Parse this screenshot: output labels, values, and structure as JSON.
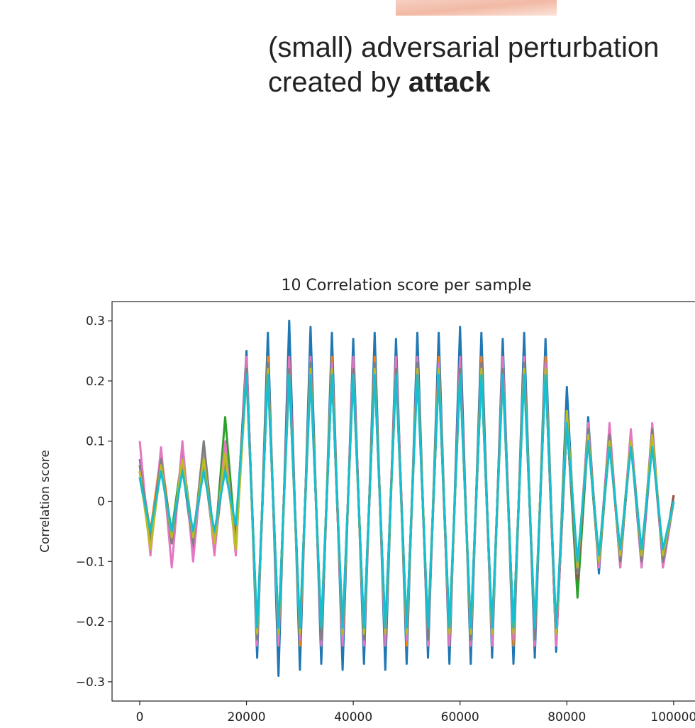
{
  "caption": {
    "line1": "(small) adversarial perturbation",
    "line2_prefix": "created by",
    "line2_bold": "attack"
  },
  "chart_data": {
    "type": "line",
    "title": "10 Correlation score per sample",
    "y_label": "Correlation score",
    "x": [
      0,
      2000,
      4000,
      6000,
      8000,
      10000,
      12000,
      14000,
      16000,
      18000,
      20000,
      22000,
      24000,
      26000,
      28000,
      30000,
      32000,
      34000,
      36000,
      38000,
      40000,
      42000,
      44000,
      46000,
      48000,
      50000,
      52000,
      54000,
      56000,
      58000,
      60000,
      62000,
      64000,
      66000,
      68000,
      70000,
      72000,
      74000,
      76000,
      78000,
      80000,
      82000,
      84000,
      86000,
      88000,
      90000,
      92000,
      94000,
      96000,
      98000,
      100000
    ],
    "xlim": [
      -5180,
      104800
    ],
    "xticks": [
      0,
      20000,
      40000,
      60000,
      80000,
      100000
    ],
    "ylim": [
      -0.332,
      0.332
    ],
    "yticks": [
      {
        "value": -0.3,
        "label": "−0.3"
      },
      {
        "value": -0.2,
        "label": "−0.2"
      },
      {
        "value": -0.1,
        "label": "−0.1"
      },
      0.0,
      0.1,
      0.2,
      0.3
    ],
    "series": [
      {
        "color": "#1f77b4",
        "values": [
          0.05,
          -0.06,
          0.07,
          -0.07,
          0.06,
          -0.08,
          0.07,
          -0.06,
          0.08,
          -0.07,
          0.25,
          -0.26,
          0.28,
          -0.29,
          0.3,
          -0.28,
          0.29,
          -0.27,
          0.28,
          -0.28,
          0.27,
          -0.27,
          0.28,
          -0.28,
          0.27,
          -0.27,
          0.28,
          -0.26,
          0.28,
          -0.27,
          0.29,
          -0.27,
          0.28,
          -0.26,
          0.27,
          -0.27,
          0.28,
          -0.26,
          0.27,
          -0.25,
          0.19,
          -0.15,
          0.14,
          -0.12,
          0.12,
          -0.11,
          0.11,
          -0.1,
          0.12,
          -0.11,
          0.0
        ]
      },
      {
        "color": "#ff7f0e",
        "values": [
          0.06,
          -0.05,
          0.08,
          -0.06,
          0.07,
          -0.07,
          0.06,
          -0.07,
          0.09,
          -0.06,
          0.22,
          -0.23,
          0.24,
          -0.23,
          0.24,
          -0.24,
          0.23,
          -0.23,
          0.24,
          -0.23,
          0.22,
          -0.23,
          0.24,
          -0.23,
          0.24,
          -0.24,
          0.23,
          -0.23,
          0.24,
          -0.23,
          0.22,
          -0.23,
          0.24,
          -0.23,
          0.24,
          -0.24,
          0.23,
          -0.23,
          0.24,
          -0.23,
          0.15,
          -0.12,
          0.12,
          -0.1,
          0.11,
          -0.1,
          0.1,
          -0.09,
          0.11,
          -0.1,
          0.01
        ]
      },
      {
        "color": "#2ca02c",
        "values": [
          0.04,
          -0.06,
          0.06,
          -0.05,
          0.08,
          -0.06,
          0.07,
          -0.08,
          0.14,
          -0.07,
          0.23,
          -0.22,
          0.23,
          -0.24,
          0.23,
          -0.23,
          0.24,
          -0.22,
          0.23,
          -0.24,
          0.23,
          -0.22,
          0.23,
          -0.24,
          0.23,
          -0.23,
          0.24,
          -0.22,
          0.23,
          -0.24,
          0.23,
          -0.22,
          0.23,
          -0.24,
          0.23,
          -0.23,
          0.24,
          -0.22,
          0.23,
          -0.24,
          0.14,
          -0.16,
          0.11,
          -0.11,
          0.1,
          -0.09,
          0.11,
          -0.1,
          0.1,
          -0.09,
          0.0
        ]
      },
      {
        "color": "#d62728",
        "values": [
          0.05,
          -0.07,
          0.07,
          -0.06,
          0.07,
          -0.06,
          0.08,
          -0.07,
          0.07,
          -0.06,
          0.24,
          -0.23,
          0.22,
          -0.23,
          0.24,
          -0.22,
          0.23,
          -0.23,
          0.22,
          -0.24,
          0.24,
          -0.23,
          0.22,
          -0.23,
          0.24,
          -0.22,
          0.23,
          -0.23,
          0.22,
          -0.24,
          0.24,
          -0.23,
          0.22,
          -0.23,
          0.24,
          -0.22,
          0.23,
          -0.23,
          0.22,
          -0.24,
          0.13,
          -0.12,
          0.12,
          -0.1,
          0.1,
          -0.1,
          0.11,
          -0.09,
          0.1,
          -0.1,
          0.01
        ]
      },
      {
        "color": "#9467bd",
        "values": [
          0.07,
          -0.06,
          0.06,
          -0.07,
          0.08,
          -0.07,
          0.06,
          -0.06,
          0.08,
          -0.08,
          0.22,
          -0.22,
          0.23,
          -0.22,
          0.22,
          -0.23,
          0.22,
          -0.22,
          0.23,
          -0.22,
          0.22,
          -0.22,
          0.23,
          -0.22,
          0.22,
          -0.23,
          0.22,
          -0.22,
          0.23,
          -0.22,
          0.22,
          -0.22,
          0.23,
          -0.22,
          0.22,
          -0.23,
          0.22,
          -0.22,
          0.23,
          -0.22,
          0.14,
          -0.11,
          0.11,
          -0.1,
          0.12,
          -0.1,
          0.1,
          -0.11,
          0.1,
          -0.09,
          0.0
        ]
      },
      {
        "color": "#8c564b",
        "values": [
          0.06,
          -0.07,
          0.07,
          -0.07,
          0.06,
          -0.07,
          0.07,
          -0.08,
          0.07,
          -0.07,
          0.23,
          -0.23,
          0.22,
          -0.22,
          0.23,
          -0.22,
          0.23,
          -0.22,
          0.22,
          -0.23,
          0.23,
          -0.23,
          0.22,
          -0.22,
          0.23,
          -0.22,
          0.23,
          -0.22,
          0.22,
          -0.23,
          0.23,
          -0.23,
          0.22,
          -0.22,
          0.23,
          -0.22,
          0.23,
          -0.22,
          0.22,
          -0.23,
          0.13,
          -0.13,
          0.11,
          -0.11,
          0.11,
          -0.1,
          0.1,
          -0.1,
          0.11,
          -0.1,
          0.01
        ]
      },
      {
        "color": "#e377c2",
        "values": [
          0.1,
          -0.09,
          0.09,
          -0.11,
          0.1,
          -0.1,
          0.09,
          -0.09,
          0.1,
          -0.09,
          0.24,
          -0.24,
          0.23,
          -0.24,
          0.24,
          -0.23,
          0.24,
          -0.24,
          0.23,
          -0.24,
          0.24,
          -0.24,
          0.23,
          -0.24,
          0.24,
          -0.23,
          0.24,
          -0.24,
          0.23,
          -0.24,
          0.24,
          -0.24,
          0.23,
          -0.24,
          0.24,
          -0.23,
          0.24,
          -0.24,
          0.23,
          -0.24,
          0.14,
          -0.12,
          0.13,
          -0.11,
          0.13,
          -0.11,
          0.12,
          -0.11,
          0.13,
          -0.11,
          0.0
        ]
      },
      {
        "color": "#7f7f7f",
        "values": [
          0.06,
          -0.06,
          0.07,
          -0.07,
          0.07,
          -0.07,
          0.1,
          -0.07,
          0.07,
          -0.07,
          0.22,
          -0.23,
          0.23,
          -0.22,
          0.22,
          -0.22,
          0.23,
          -0.23,
          0.22,
          -0.22,
          0.22,
          -0.23,
          0.23,
          -0.22,
          0.22,
          -0.22,
          0.23,
          -0.23,
          0.22,
          -0.22,
          0.22,
          -0.23,
          0.23,
          -0.22,
          0.22,
          -0.22,
          0.23,
          -0.23,
          0.22,
          -0.22,
          0.13,
          -0.12,
          0.12,
          -0.1,
          0.11,
          -0.1,
          0.1,
          -0.1,
          0.12,
          -0.1,
          0.0
        ]
      },
      {
        "color": "#bcbd22",
        "values": [
          0.05,
          -0.08,
          0.06,
          -0.06,
          0.07,
          -0.06,
          0.07,
          -0.07,
          0.08,
          -0.08,
          0.21,
          -0.22,
          0.22,
          -0.22,
          0.21,
          -0.22,
          0.22,
          -0.21,
          0.22,
          -0.22,
          0.21,
          -0.22,
          0.22,
          -0.22,
          0.21,
          -0.22,
          0.22,
          -0.21,
          0.22,
          -0.22,
          0.21,
          -0.22,
          0.22,
          -0.22,
          0.21,
          -0.22,
          0.22,
          -0.21,
          0.22,
          -0.22,
          0.15,
          -0.11,
          0.11,
          -0.1,
          0.1,
          -0.09,
          0.1,
          -0.09,
          0.11,
          -0.09,
          0.0
        ]
      },
      {
        "color": "#17becf",
        "values": [
          0.04,
          -0.05,
          0.05,
          -0.05,
          0.05,
          -0.05,
          0.05,
          -0.05,
          0.05,
          -0.04,
          0.21,
          -0.21,
          0.21,
          -0.21,
          0.21,
          -0.21,
          0.21,
          -0.21,
          0.21,
          -0.21,
          0.21,
          -0.21,
          0.21,
          -0.21,
          0.21,
          -0.21,
          0.21,
          -0.21,
          0.21,
          -0.21,
          0.21,
          -0.21,
          0.21,
          -0.21,
          0.21,
          -0.21,
          0.21,
          -0.21,
          0.21,
          -0.21,
          0.13,
          -0.1,
          0.1,
          -0.09,
          0.09,
          -0.08,
          0.09,
          -0.08,
          0.09,
          -0.08,
          0.0
        ]
      }
    ]
  }
}
